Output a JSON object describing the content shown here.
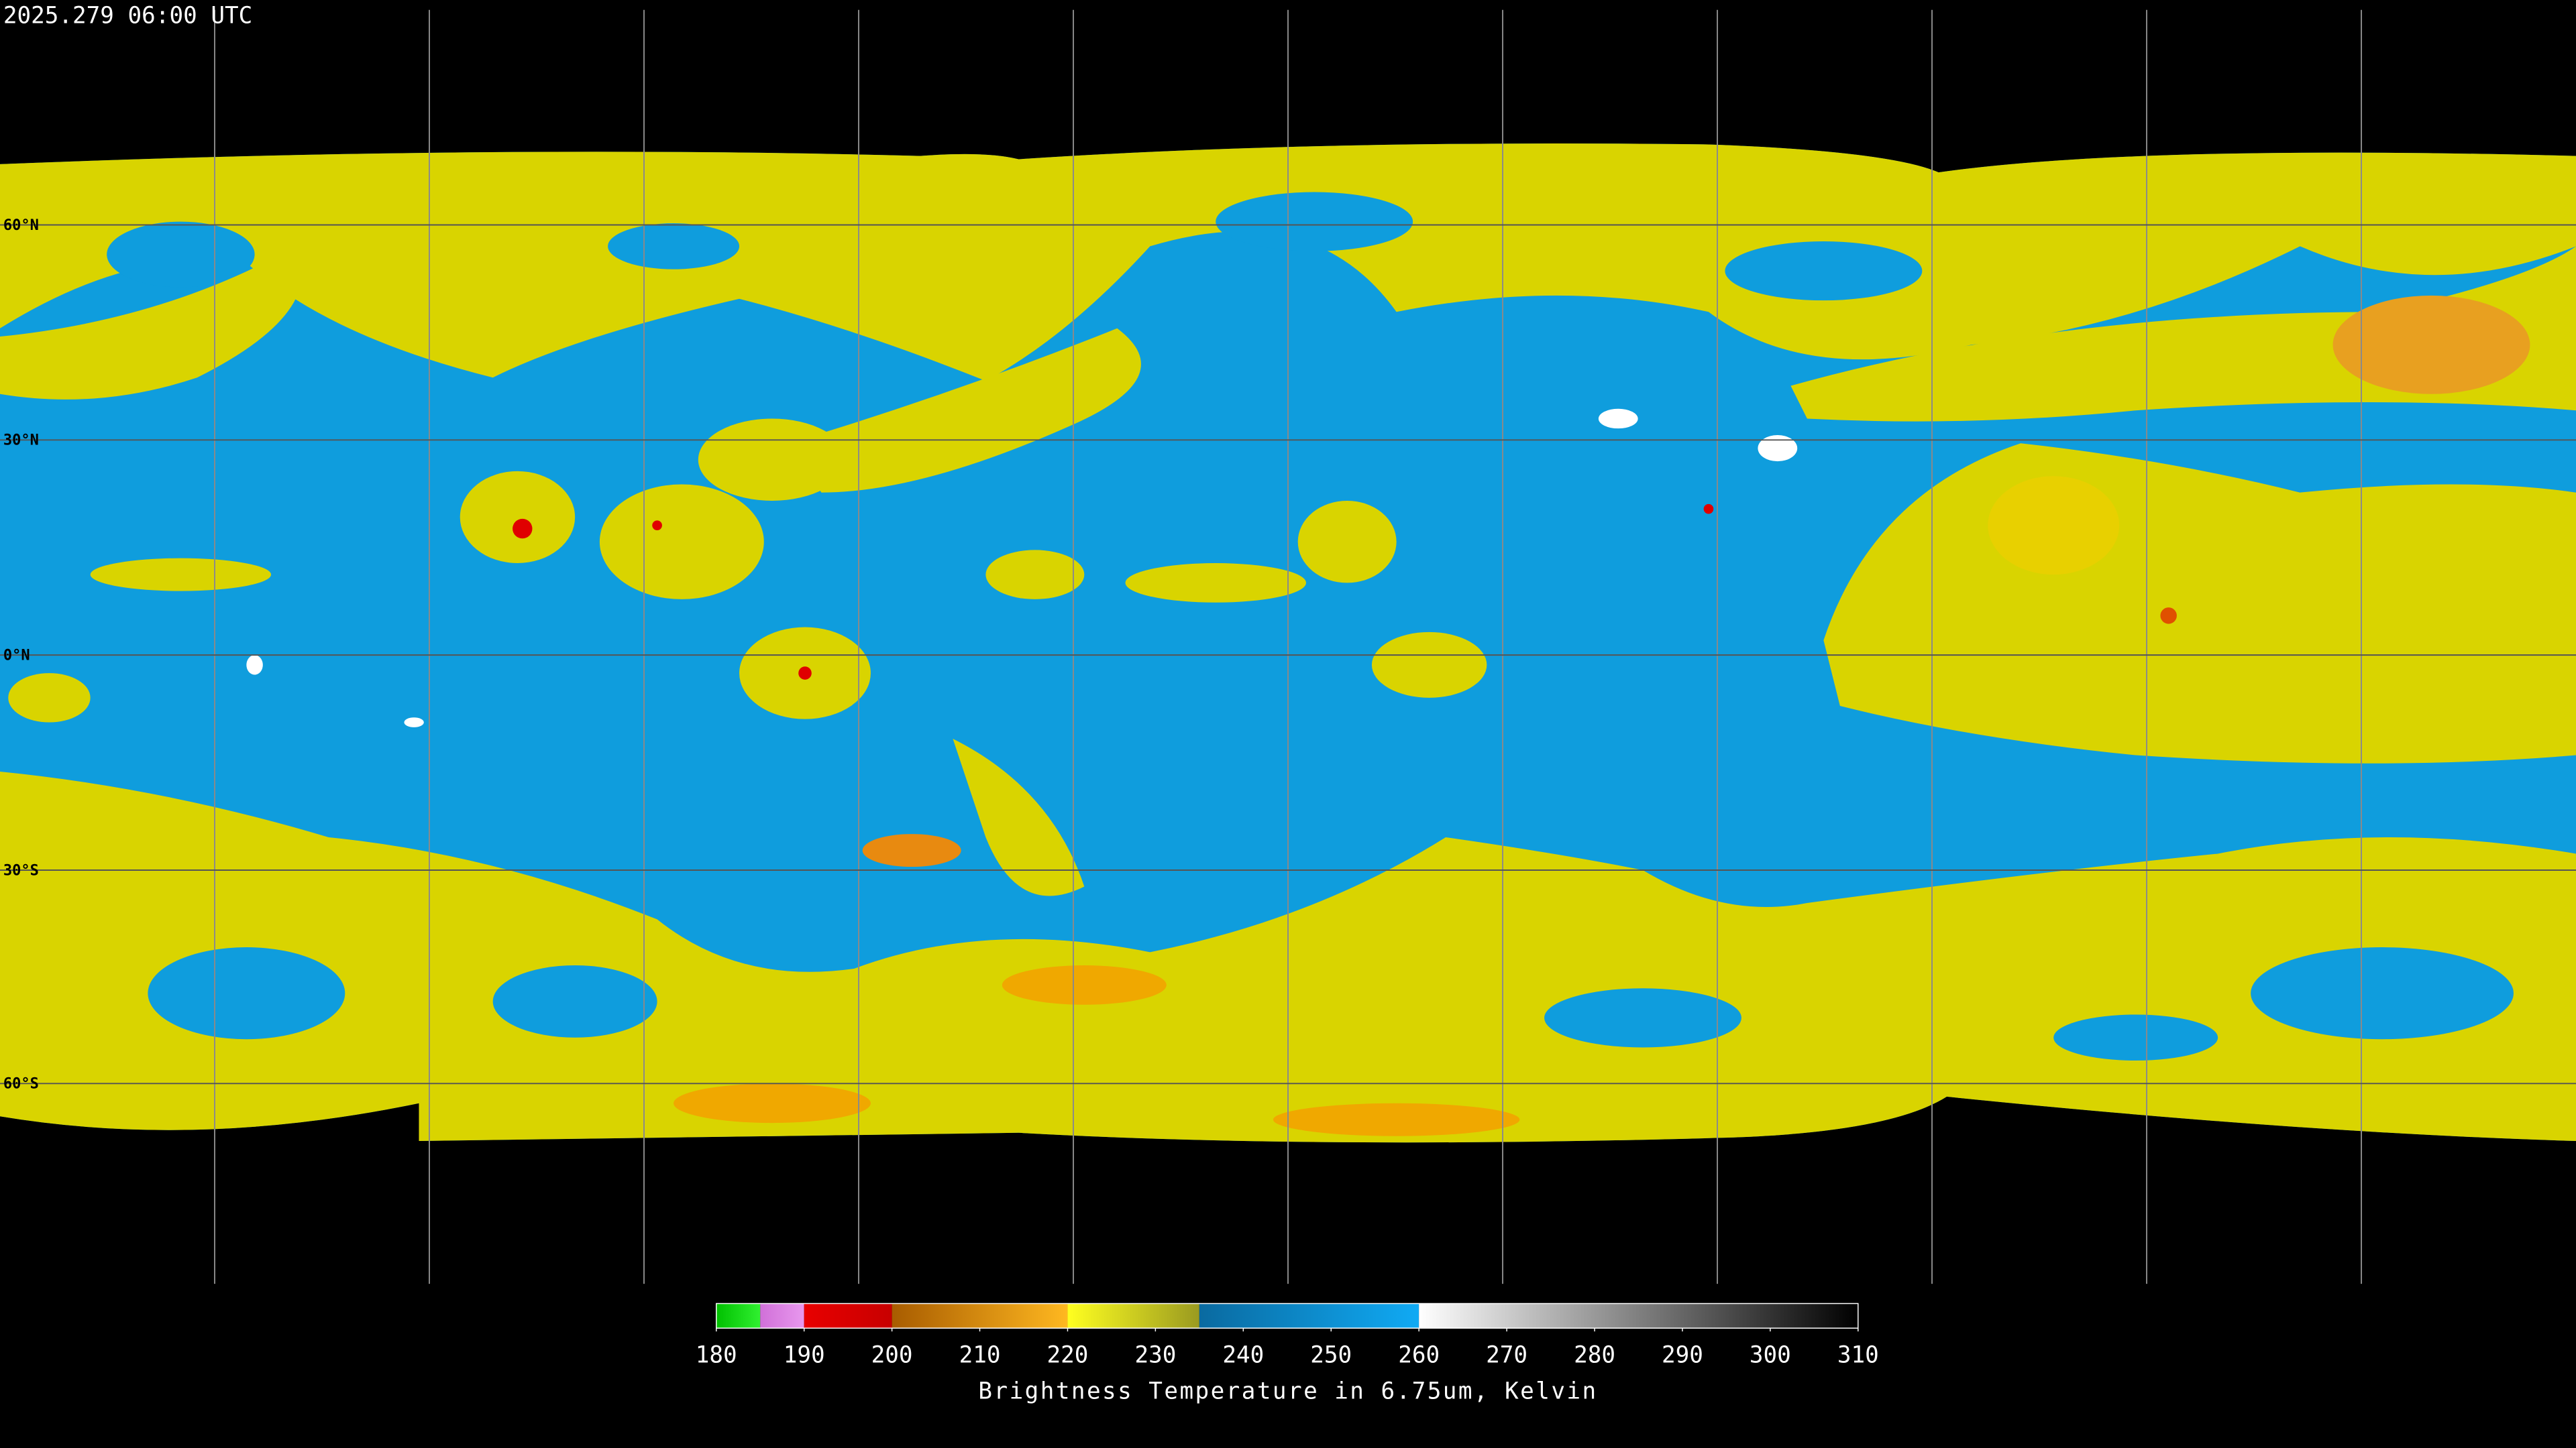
{
  "header": {
    "timestamp": "2025.279 06:00 UTC"
  },
  "map": {
    "latitude_labels": [
      "60°N",
      "30°N",
      "0°N",
      "30°S",
      "60°S"
    ]
  },
  "colorbar": {
    "ticks": [
      180,
      190,
      200,
      210,
      220,
      230,
      240,
      250,
      260,
      270,
      280,
      290,
      300,
      310
    ],
    "segments": [
      {
        "from": 180,
        "to": 185,
        "colors": [
          "#00c000",
          "#30f030"
        ]
      },
      {
        "from": 185,
        "to": 190,
        "colors": [
          "#d070d8",
          "#e898ee"
        ]
      },
      {
        "from": 190,
        "to": 200,
        "colors": [
          "#e80000",
          "#c80000"
        ]
      },
      {
        "from": 200,
        "to": 220,
        "colors": [
          "#a85c00",
          "#ffb820"
        ]
      },
      {
        "from": 220,
        "to": 235,
        "colors": [
          "#ffff20",
          "#9a9a20"
        ]
      },
      {
        "from": 235,
        "to": 260,
        "colors": [
          "#0a6aa0",
          "#10aaf4"
        ]
      },
      {
        "from": 260,
        "to": 310,
        "colors": [
          "#ffffff",
          "#000000"
        ]
      }
    ],
    "label": "Brightness Temperature in 6.75um, Kelvin"
  }
}
